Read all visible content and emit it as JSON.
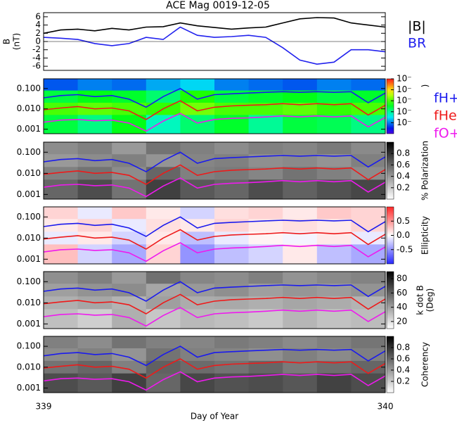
{
  "chart_data": [
    {
      "type": "line",
      "title": "ACE Mag 0019-12-05",
      "ylabel": "B",
      "ylabel_unit": "(nT)",
      "xlim": [
        339,
        340
      ],
      "ylim": [
        -7,
        7
      ],
      "yticks": [
        6,
        4,
        2,
        0,
        -2,
        -4,
        -6
      ],
      "x": [
        339.0,
        339.05,
        339.1,
        339.15,
        339.2,
        339.25,
        339.3,
        339.35,
        339.4,
        339.45,
        339.5,
        339.55,
        339.6,
        339.65,
        339.7,
        339.75,
        339.8,
        339.85,
        339.9,
        339.95,
        340.0
      ],
      "series": [
        {
          "name": "|B|",
          "color": "#000000",
          "values": [
            2.0,
            2.8,
            3.0,
            2.6,
            3.2,
            2.8,
            3.5,
            3.6,
            4.5,
            3.8,
            3.4,
            3.0,
            3.3,
            3.5,
            4.5,
            5.5,
            5.8,
            5.7,
            4.5,
            4.0,
            3.5
          ]
        },
        {
          "name": "BR",
          "color": "#2222ee",
          "values": [
            1.0,
            0.8,
            0.5,
            -0.5,
            -1.0,
            -0.5,
            1.0,
            0.5,
            3.5,
            1.5,
            1.0,
            1.2,
            1.5,
            1.0,
            -1.5,
            -4.5,
            -5.5,
            -5.0,
            -2.0,
            -2.0,
            -2.5
          ]
        }
      ]
    },
    {
      "type": "heatmap",
      "ylim": [
        0.0006,
        0.3
      ],
      "log_y": true,
      "yticks": [
        {
          "value": 0.1,
          "label": "0.100"
        },
        {
          "value": 0.01,
          "label": "0.010"
        },
        0.001
      ],
      "xbins": [
        339.0,
        339.1,
        339.2,
        339.3,
        339.4,
        339.5,
        339.6,
        339.7,
        339.8,
        339.9,
        340.0
      ],
      "ybins": [
        0.3,
        0.08,
        0.02,
        0.005,
        0.0006
      ],
      "z": [
        [
          -5.2,
          -5.0,
          -5.1,
          -4.8,
          -4.6,
          -5.0,
          -5.1,
          -5.2,
          -5.0,
          -5.1
        ],
        [
          -3.6,
          -3.4,
          -3.5,
          -3.8,
          -3.2,
          -3.6,
          -3.5,
          -3.4,
          -3.6,
          -3.5
        ],
        [
          -3.0,
          -2.9,
          -3.0,
          -3.1,
          -2.8,
          -3.0,
          -3.0,
          -2.9,
          -3.1,
          -3.0
        ],
        [
          -3.6,
          -3.9,
          -3.4,
          -4.2,
          -3.8,
          -3.5,
          -4.0,
          -3.6,
          -3.7,
          -3.9
        ]
      ],
      "colorbar": {
        "colormap": "rainbow",
        "label": ")",
        "lim": [
          -6,
          -1
        ],
        "ticks": [
          {
            "value": -5,
            "label": "10⁻"
          },
          {
            "value": -4,
            "label": "10⁻"
          },
          {
            "value": -3,
            "label": "10⁻"
          },
          {
            "value": -2,
            "label": "10⁻"
          },
          {
            "value": -1,
            "label": "10⁻"
          }
        ]
      },
      "x": [
        339.0,
        339.05,
        339.1,
        339.15,
        339.2,
        339.25,
        339.3,
        339.35,
        339.4,
        339.45,
        339.5,
        339.55,
        339.6,
        339.65,
        339.7,
        339.75,
        339.8,
        339.85,
        339.9,
        339.95,
        340.0
      ],
      "series": [
        {
          "name": "fH+",
          "color": "#1a1aee",
          "values": [
            0.035,
            0.045,
            0.05,
            0.04,
            0.045,
            0.03,
            0.012,
            0.04,
            0.1,
            0.03,
            0.05,
            0.055,
            0.06,
            0.065,
            0.07,
            0.065,
            0.07,
            0.065,
            0.07,
            0.02,
            0.06
          ]
        },
        {
          "name": "fHe+",
          "color": "#ee1a1a",
          "values": [
            0.009,
            0.011,
            0.013,
            0.01,
            0.011,
            0.008,
            0.003,
            0.01,
            0.025,
            0.008,
            0.012,
            0.014,
            0.015,
            0.016,
            0.018,
            0.016,
            0.018,
            0.016,
            0.018,
            0.005,
            0.015
          ]
        },
        {
          "name": "fO+",
          "color": "#ee1aee",
          "values": [
            0.0022,
            0.0028,
            0.003,
            0.0026,
            0.0028,
            0.002,
            0.0008,
            0.0025,
            0.006,
            0.002,
            0.003,
            0.0034,
            0.0036,
            0.004,
            0.0045,
            0.004,
            0.0045,
            0.004,
            0.0045,
            0.0013,
            0.0038
          ]
        }
      ]
    },
    {
      "type": "heatmap",
      "ylim": [
        0.0006,
        0.3
      ],
      "log_y": true,
      "yticks": [
        {
          "value": 0.1,
          "label": "0.100"
        },
        {
          "value": 0.01,
          "label": "0.010"
        },
        0.001
      ],
      "xbins": [
        339.0,
        339.1,
        339.2,
        339.3,
        339.4,
        339.5,
        339.6,
        339.7,
        339.8,
        339.9,
        340.0
      ],
      "ybins": [
        0.3,
        0.08,
        0.02,
        0.005,
        0.0006
      ],
      "z": [
        [
          0.45,
          0.5,
          0.4,
          0.55,
          0.5,
          0.45,
          0.5,
          0.48,
          0.52,
          0.46
        ],
        [
          0.4,
          0.45,
          0.5,
          0.42,
          0.48,
          0.5,
          0.44,
          0.46,
          0.42,
          0.5
        ],
        [
          0.5,
          0.55,
          0.45,
          0.6,
          0.5,
          0.52,
          0.48,
          0.55,
          0.5,
          0.45
        ],
        [
          0.6,
          0.7,
          0.55,
          0.75,
          0.65,
          0.6,
          0.7,
          0.62,
          0.68,
          0.72
        ]
      ],
      "colorbar": {
        "colormap": "gray",
        "label": "% Polarization",
        "lim": [
          0,
          1
        ],
        "ticks": [
          0.2,
          0.4,
          0.6,
          0.8
        ]
      }
    },
    {
      "type": "heatmap",
      "ylim": [
        0.0006,
        0.3
      ],
      "log_y": true,
      "yticks": [
        {
          "value": 0.1,
          "label": "0.100"
        },
        {
          "value": 0.01,
          "label": "0.010"
        },
        0.001
      ],
      "xbins": [
        339.0,
        339.1,
        339.2,
        339.3,
        339.4,
        339.5,
        339.6,
        339.7,
        339.8,
        339.9,
        340.0
      ],
      "ybins": [
        0.3,
        0.08,
        0.02,
        0.005,
        0.0006
      ],
      "z": [
        [
          0.2,
          -0.1,
          0.25,
          0.1,
          -0.2,
          0.15,
          0.2,
          0.1,
          0.25,
          0.2
        ],
        [
          0.1,
          0.2,
          -0.1,
          0.15,
          0.1,
          0.2,
          0.1,
          0.15,
          0.1,
          0.2
        ],
        [
          -0.1,
          0.1,
          -0.2,
          0.1,
          -0.3,
          -0.1,
          0.05,
          -0.05,
          0.1,
          -0.1
        ],
        [
          0.3,
          -0.2,
          -0.4,
          0.2,
          -0.5,
          -0.3,
          -0.2,
          0.1,
          -0.3,
          -0.4
        ]
      ],
      "colorbar": {
        "colormap": "bwr",
        "label": "Ellipticity",
        "lim": [
          -1,
          1
        ],
        "ticks": [
          0.5,
          {
            "value": 0,
            "label": "0.0"
          },
          -0.5
        ]
      }
    },
    {
      "type": "heatmap",
      "ylim": [
        0.0006,
        0.3
      ],
      "log_y": true,
      "yticks": [
        {
          "value": 0.1,
          "label": "0.100"
        },
        {
          "value": 0.01,
          "label": "0.010"
        },
        0.001
      ],
      "xbins": [
        339.0,
        339.1,
        339.2,
        339.3,
        339.4,
        339.5,
        339.6,
        339.7,
        339.8,
        339.9,
        340.0
      ],
      "ybins": [
        0.3,
        0.08,
        0.02,
        0.005,
        0.0006
      ],
      "z": [
        [
          45,
          50,
          42,
          55,
          48,
          46,
          50,
          44,
          47,
          49
        ],
        [
          40,
          44,
          46,
          38,
          42,
          45,
          40,
          43,
          41,
          44
        ],
        [
          35,
          38,
          34,
          40,
          36,
          37,
          35,
          38,
          36,
          34
        ],
        [
          30,
          25,
          35,
          28,
          32,
          30,
          27,
          33,
          29,
          31
        ]
      ],
      "colorbar": {
        "colormap": "gray",
        "label": "k dot B",
        "label_unit": "(Deg)",
        "lim": [
          10,
          90
        ],
        "ticks": [
          20,
          40,
          60,
          80
        ]
      }
    },
    {
      "type": "heatmap",
      "ylim": [
        0.0006,
        0.3
      ],
      "log_y": true,
      "yticks": [
        {
          "value": 0.1,
          "label": "0.100"
        },
        {
          "value": 0.01,
          "label": "0.010"
        },
        0.001
      ],
      "xlim": [
        339,
        340
      ],
      "xticks": [
        339,
        340
      ],
      "xlabel": "Day of Year",
      "xbins": [
        339.0,
        339.1,
        339.2,
        339.3,
        339.4,
        339.5,
        339.6,
        339.7,
        339.8,
        339.9,
        340.0
      ],
      "ybins": [
        0.3,
        0.08,
        0.02,
        0.005,
        0.0006
      ],
      "z": [
        [
          0.5,
          0.45,
          0.55,
          0.5,
          0.48,
          0.52,
          0.5,
          0.46,
          0.5,
          0.54
        ],
        [
          0.45,
          0.5,
          0.42,
          0.55,
          0.5,
          0.48,
          0.44,
          0.5,
          0.46,
          0.5
        ],
        [
          0.55,
          0.6,
          0.5,
          0.62,
          0.58,
          0.55,
          0.6,
          0.52,
          0.57,
          0.6
        ],
        [
          0.7,
          0.65,
          0.75,
          0.6,
          0.72,
          0.68,
          0.7,
          0.66,
          0.74,
          0.7
        ]
      ],
      "colorbar": {
        "colormap": "gray",
        "label": "Coherency",
        "lim": [
          0,
          1
        ],
        "ticks": [
          0.2,
          0.4,
          0.6,
          0.8
        ]
      }
    }
  ]
}
